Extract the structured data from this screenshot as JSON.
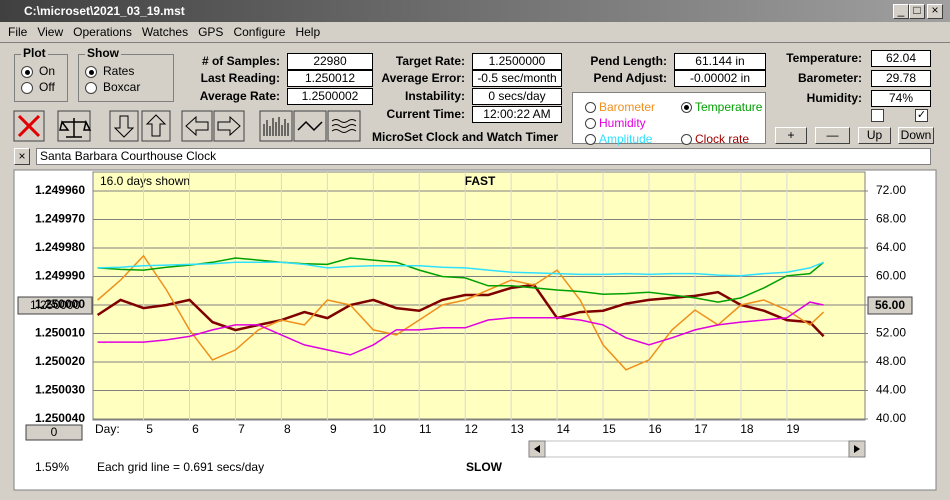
{
  "window": {
    "title": "C:\\microset\\2021_03_19.mst"
  },
  "menu": [
    "File",
    "View",
    "Operations",
    "Watches",
    "GPS",
    "Configure",
    "Help"
  ],
  "plot_group": {
    "title": "Plot",
    "options": [
      "On",
      "Off"
    ],
    "selected": 0
  },
  "show_group": {
    "title": "Show",
    "options": [
      "Rates",
      "Boxcar"
    ],
    "selected": 0
  },
  "fields": [
    {
      "label": "# of Samples:",
      "value": "22980"
    },
    {
      "label": "Last Reading:",
      "value": "1.250012"
    },
    {
      "label": "Average Rate:",
      "value": "1.2500002"
    },
    {
      "label": "Target Rate:",
      "value": "1.2500000"
    },
    {
      "label": "Average Error:",
      "value": "-0.5 sec/month"
    },
    {
      "label": "Instability:",
      "value": "0 secs/day"
    },
    {
      "label": "Current Time:",
      "value": "12:00:22 AM"
    },
    {
      "label": "Pend Length:",
      "value": "61.144 in"
    },
    {
      "label": "Pend Adjust:",
      "value": "-0.00002 in"
    },
    {
      "label": "Temperature:",
      "value": "62.04"
    },
    {
      "label": "Barometer:",
      "value": "29.78"
    },
    {
      "label": "Humidity:",
      "value": "74%"
    }
  ],
  "app_caption": "MicroSet Clock and Watch Timer",
  "buttons": [
    "+",
    "—",
    "Up",
    "Down"
  ],
  "clock_name": "Santa Barbara Courthouse Clock",
  "chart_data": {
    "type": "line",
    "top_label": "FAST",
    "bottom_label": "SLOW",
    "days_shown": "16.0 days shown",
    "grid_note": "Each grid line = 0.691 secs/day",
    "x_label": "Day:",
    "center_button": "1.250000",
    "right_button": "56.00",
    "offset_button": "0",
    "percent": "1.59%",
    "selected_series": 2,
    "grid": true,
    "xlim": [
      3.9,
      20.7
    ],
    "xticks": [
      5,
      6,
      7,
      8,
      9,
      10,
      11,
      12,
      13,
      14,
      15,
      16,
      17,
      18,
      19
    ],
    "ylim": [
      1.25004,
      1.24996
    ],
    "yticks": [
      {
        "value": 1.24996,
        "label": "1.249960"
      },
      {
        "value": 1.24997,
        "label": "1.249970"
      },
      {
        "value": 1.24998,
        "label": "1.249980"
      },
      {
        "value": 1.24999,
        "label": "1.249990"
      },
      {
        "value": 1.25,
        "label": "1.250000"
      },
      {
        "value": 1.25001,
        "label": "1.250010"
      },
      {
        "value": 1.25002,
        "label": "1.250020"
      },
      {
        "value": 1.25003,
        "label": "1.250030"
      },
      {
        "value": 1.25004,
        "label": "1.250040"
      }
    ],
    "y2lim": [
      40,
      72
    ],
    "y2ticks": [
      {
        "value": 72,
        "label": "72.00"
      },
      {
        "value": 68,
        "label": "68.00"
      },
      {
        "value": 64,
        "label": "64.00"
      },
      {
        "value": 60,
        "label": "60.00"
      },
      {
        "value": 56,
        "label": "56.00"
      },
      {
        "value": 52,
        "label": "52.00"
      },
      {
        "value": 48,
        "label": "48.00"
      },
      {
        "value": 44,
        "label": "44.00"
      },
      {
        "value": 40,
        "label": "40.00"
      }
    ],
    "x": [
      4,
      4.5,
      5,
      5.5,
      6,
      6.5,
      7,
      7.5,
      8,
      8.5,
      9,
      9.5,
      10,
      10.5,
      11,
      11.5,
      12,
      12.5,
      13,
      13.5,
      14,
      14.5,
      15,
      15.5,
      16,
      16.5,
      17,
      17.5,
      18,
      18.5,
      19,
      19.5,
      19.8
    ],
    "series": [
      {
        "name": "Clock rate",
        "color": "#800000",
        "values": [
          1.2500035,
          1.2499982,
          1.2500011,
          1.25,
          1.2499982,
          1.250006,
          1.2500088,
          1.250007,
          1.2500053,
          1.2500025,
          1.2500046,
          1.25,
          1.2499982,
          1.2500011,
          1.250002,
          1.2499982,
          1.2499965,
          1.2499965,
          1.249994,
          1.249993,
          1.2500046,
          1.2500025,
          1.250002,
          1.2499995,
          1.2499982,
          1.2499975,
          1.2499968,
          1.2499955,
          1.25,
          1.250002,
          1.2500053,
          1.250006,
          1.250011
        ]
      },
      {
        "name": "Barometer",
        "color": "#f0901c",
        "axis": "y2",
        "values": [
          56.7,
          59.5,
          62.9,
          58.1,
          52.5,
          48.3,
          49.7,
          52.5,
          53.9,
          53.2,
          56.7,
          56.0,
          52.5,
          51.8,
          53.9,
          56.0,
          56.7,
          58.1,
          59.5,
          58.8,
          60.9,
          56.7,
          50.4,
          46.9,
          48.3,
          52.5,
          55.3,
          53.2,
          56.0,
          56.7,
          55.3,
          53.2,
          55.0
        ]
      },
      {
        "name": "Temperature",
        "color": "#00a000",
        "axis": "y2",
        "values": [
          61.2,
          61.0,
          60.9,
          61.3,
          61.6,
          62.0,
          62.6,
          62.3,
          62.0,
          61.8,
          61.7,
          62.6,
          62.3,
          62.0,
          60.9,
          60.0,
          59.8,
          58.7,
          58.7,
          58.4,
          58.1,
          57.9,
          57.5,
          57.6,
          57.8,
          57.4,
          57.0,
          56.4,
          57.0,
          58.4,
          60.1,
          60.4,
          62.0
        ]
      },
      {
        "name": "Humidity",
        "color": "#e000e0",
        "axis": "y2",
        "values": [
          50.8,
          50.8,
          50.8,
          51.1,
          51.6,
          52.5,
          53.2,
          53.2,
          51.8,
          50.4,
          49.7,
          49.0,
          50.4,
          52.5,
          52.5,
          52.8,
          52.8,
          53.9,
          54.2,
          54.2,
          54.2,
          53.9,
          53.2,
          51.4,
          50.4,
          51.4,
          52.5,
          53.2,
          53.6,
          53.9,
          54.2,
          56.4,
          56.0
        ]
      },
      {
        "name": "Amplitude",
        "color": "#30e0ff",
        "axis": "y2",
        "values": [
          61.2,
          61.3,
          61.5,
          61.6,
          61.7,
          61.8,
          62.0,
          62.0,
          62.0,
          61.7,
          61.2,
          61.4,
          61.5,
          61.5,
          61.5,
          61.3,
          61.2,
          60.9,
          60.6,
          60.5,
          60.4,
          60.3,
          60.3,
          60.4,
          60.3,
          60.4,
          60.4,
          60.2,
          60.1,
          60.4,
          60.6,
          61.2,
          62.0
        ]
      }
    ]
  }
}
